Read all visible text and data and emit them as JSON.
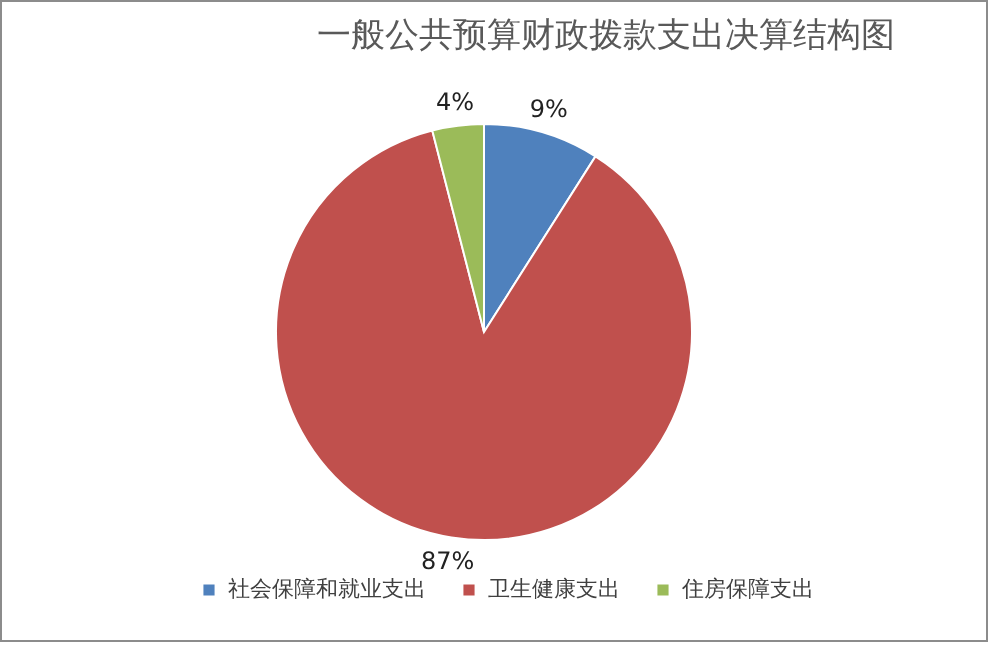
{
  "chart_data": {
    "type": "pie",
    "title": "一般公共预算财政拨款支出决算结构图",
    "categories": [
      "社会保障和就业支出",
      "卫生健康支出",
      "住房保障支出"
    ],
    "values": [
      9,
      87,
      4
    ],
    "colors": [
      "#4f81bd",
      "#c0504d",
      "#9bbb59"
    ],
    "value_labels": [
      "9%",
      "87%",
      "4%"
    ],
    "legend": "bottom"
  }
}
